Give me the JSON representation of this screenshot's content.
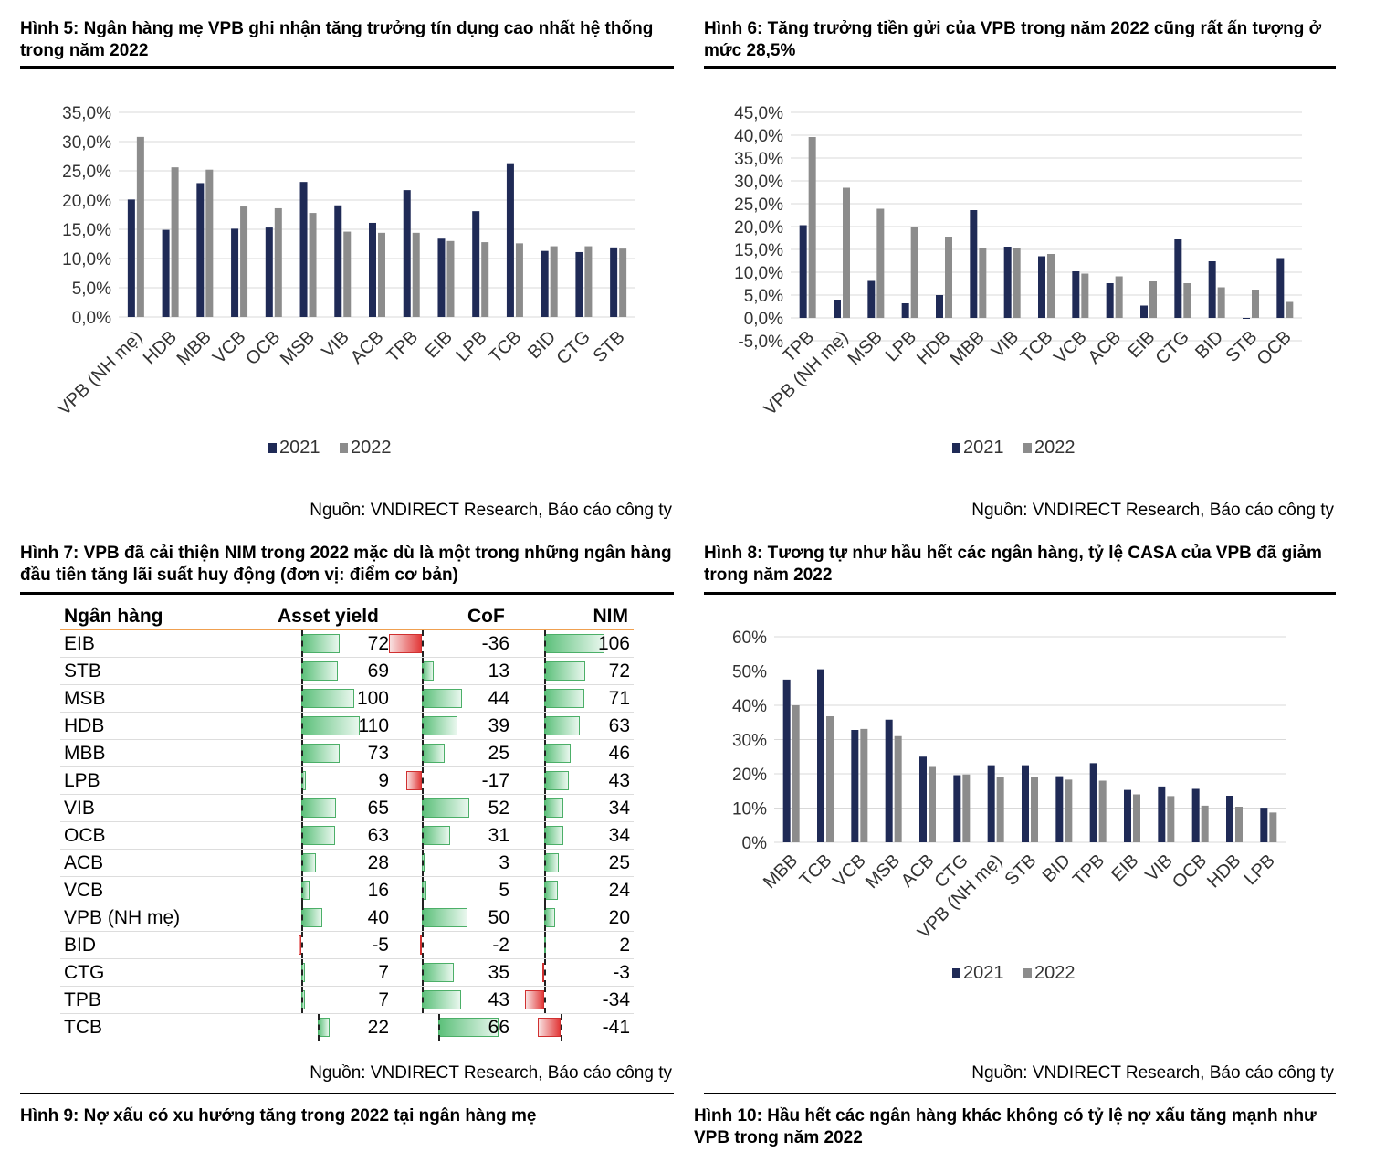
{
  "fig5": {
    "label": "Hình 5:",
    "title": "Ngân hàng mẹ VPB ghi nhận tăng trưởng tín dụng cao nhất hệ thống trong năm 2022",
    "source": "Nguồn: VNDIRECT Research, Báo cáo công ty"
  },
  "fig6": {
    "label": "Hình 6:",
    "title": "Tăng trưởng tiền gửi của VPB trong năm 2022 cũng rất ấn tượng ở mức 28,5%",
    "source": "Nguồn: VNDIRECT Research, Báo cáo công ty"
  },
  "fig7": {
    "label": "Hình 7:",
    "title": "VPB đã cải thiện NIM trong 2022 mặc dù là một trong những ngân hàng đầu tiên tăng lãi suất huy động (đơn vị: điểm cơ bản)",
    "source": "Nguồn: VNDIRECT Research, Báo cáo công ty"
  },
  "fig8": {
    "label": "Hình 8:",
    "title": "Tương tự như hầu hết các ngân hàng, tỷ lệ CASA của VPB đã giảm trong năm 2022",
    "source": "Nguồn: VNDIRECT Research, Báo cáo công ty"
  },
  "fig9": {
    "label": "Hình 9:",
    "title": "Nợ xấu có xu hướng tăng trong 2022 tại ngân hàng mẹ"
  },
  "fig10": {
    "label": "Hình 10:",
    "title": "Hầu hết các ngân hàng khác không có tỷ lệ nợ xấu tăng mạnh như VPB trong năm 2022"
  },
  "colors": {
    "s2021": "#1f2a56",
    "s2022": "#8c8c8c",
    "grid": "#d9d9d9",
    "pos": "#5cc07a",
    "neg": "#e23a3a",
    "header_rule": "#f0a050"
  },
  "chart_data": [
    {
      "id": "fig5",
      "type": "bar",
      "categories": [
        "VPB (NH mẹ)",
        "HDB",
        "MBB",
        "VCB",
        "OCB",
        "MSB",
        "VIB",
        "ACB",
        "TPB",
        "EIB",
        "LPB",
        "TCB",
        "BID",
        "CTG",
        "STB"
      ],
      "series": [
        {
          "name": "2021",
          "values": [
            20.1,
            14.9,
            22.9,
            15.1,
            15.3,
            23.1,
            19.1,
            16.1,
            21.7,
            13.4,
            18.1,
            26.3,
            11.3,
            11.1,
            11.9
          ]
        },
        {
          "name": "2022",
          "values": [
            30.8,
            25.6,
            25.2,
            18.9,
            18.6,
            17.8,
            14.6,
            14.4,
            14.4,
            13.0,
            12.8,
            12.6,
            12.1,
            12.1,
            11.7
          ]
        }
      ],
      "yticks": [
        "35,0%",
        "30,0%",
        "25,0%",
        "20,0%",
        "15,0%",
        "10,0%",
        "5,0%",
        "0,0%"
      ],
      "ylim": [
        0,
        35
      ],
      "legend": "bottom"
    },
    {
      "id": "fig6",
      "type": "bar",
      "categories": [
        "TPB",
        "VPB (NH mẹ)",
        "MSB",
        "LPB",
        "HDB",
        "MBB",
        "VIB",
        "TCB",
        "VCB",
        "ACB",
        "EIB",
        "CTG",
        "BID",
        "STB",
        "OCB"
      ],
      "series": [
        {
          "name": "2021",
          "values": [
            20.3,
            4.0,
            8.1,
            3.2,
            5.0,
            23.6,
            15.6,
            13.5,
            10.2,
            7.6,
            2.7,
            17.2,
            12.4,
            -0.2,
            13.1
          ]
        },
        {
          "name": "2022",
          "values": [
            39.6,
            28.5,
            23.9,
            19.8,
            17.8,
            15.3,
            15.2,
            14.0,
            9.7,
            9.1,
            8.0,
            7.6,
            6.7,
            6.2,
            3.5
          ]
        }
      ],
      "yticks": [
        "45,0%",
        "40,0%",
        "35,0%",
        "30,0%",
        "25,0%",
        "20,0%",
        "15,0%",
        "10,0%",
        "5,0%",
        "0,0%",
        "-5,0%"
      ],
      "ylim": [
        -5,
        45
      ],
      "legend": "bottom"
    },
    {
      "id": "fig7",
      "type": "table",
      "columns": [
        "Ngân hàng",
        "Asset yield",
        "CoF",
        "NIM"
      ],
      "rows": [
        {
          "bank": "EIB",
          "asset_yield": 72,
          "cof": -36,
          "nim": 106
        },
        {
          "bank": "STB",
          "asset_yield": 69,
          "cof": 13,
          "nim": 72
        },
        {
          "bank": "MSB",
          "asset_yield": 100,
          "cof": 44,
          "nim": 71
        },
        {
          "bank": "HDB",
          "asset_yield": 110,
          "cof": 39,
          "nim": 63
        },
        {
          "bank": "MBB",
          "asset_yield": 73,
          "cof": 25,
          "nim": 46
        },
        {
          "bank": "LPB",
          "asset_yield": 9,
          "cof": -17,
          "nim": 43
        },
        {
          "bank": "VIB",
          "asset_yield": 65,
          "cof": 52,
          "nim": 34
        },
        {
          "bank": "OCB",
          "asset_yield": 63,
          "cof": 31,
          "nim": 34
        },
        {
          "bank": "ACB",
          "asset_yield": 28,
          "cof": 3,
          "nim": 25
        },
        {
          "bank": "VCB",
          "asset_yield": 16,
          "cof": 5,
          "nim": 24
        },
        {
          "bank": "VPB (NH mẹ)",
          "asset_yield": 40,
          "cof": 50,
          "nim": 20
        },
        {
          "bank": "BID",
          "asset_yield": -5,
          "cof": -2,
          "nim": 2
        },
        {
          "bank": "CTG",
          "asset_yield": 7,
          "cof": 35,
          "nim": -3
        },
        {
          "bank": "TPB",
          "asset_yield": 7,
          "cof": 43,
          "nim": -34
        },
        {
          "bank": "TCB",
          "asset_yield": 22,
          "cof": 66,
          "nim": -41
        }
      ]
    },
    {
      "id": "fig8",
      "type": "bar",
      "categories": [
        "MBB",
        "TCB",
        "VCB",
        "MSB",
        "ACB",
        "CTG",
        "VPB (NH mẹ)",
        "STB",
        "BID",
        "TPB",
        "EIB",
        "VIB",
        "OCB",
        "HDB",
        "LPB"
      ],
      "series": [
        {
          "name": "2021",
          "values": [
            47.5,
            50.5,
            32.8,
            35.8,
            25.0,
            19.6,
            22.5,
            22.5,
            19.3,
            23.1,
            15.3,
            16.3,
            15.6,
            13.6,
            10.1
          ]
        },
        {
          "name": "2022",
          "values": [
            40.0,
            36.8,
            33.1,
            31.0,
            22.0,
            19.8,
            19.0,
            19.0,
            18.3,
            18.0,
            14.0,
            13.5,
            10.7,
            10.4,
            8.7
          ]
        }
      ],
      "yticks": [
        "60%",
        "50%",
        "40%",
        "30%",
        "20%",
        "10%",
        "0%"
      ],
      "ylim": [
        0,
        60
      ],
      "legend": "bottom"
    }
  ]
}
